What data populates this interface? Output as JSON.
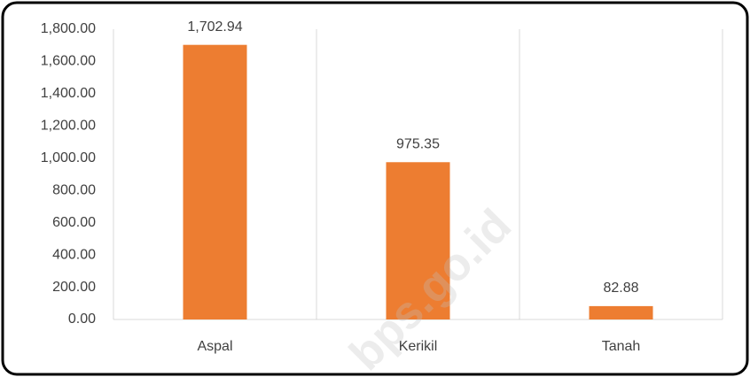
{
  "chart_data": {
    "type": "bar",
    "categories": [
      "Aspal",
      "Kerikil",
      "Tanah"
    ],
    "values": [
      1702.94,
      975.35,
      82.88
    ],
    "value_labels": [
      "1,702.94",
      "975.35",
      "82.88"
    ],
    "color": "#ed7d31",
    "ylim": [
      0,
      1800
    ],
    "yticks": [
      {
        "value": 0,
        "label": "0.00"
      },
      {
        "value": 200,
        "label": "200.00"
      },
      {
        "value": 400,
        "label": "400.00"
      },
      {
        "value": 600,
        "label": "600.00"
      },
      {
        "value": 800,
        "label": "800.00"
      },
      {
        "value": 1000,
        "label": "1,000.00"
      },
      {
        "value": 1200,
        "label": "1,200.00"
      },
      {
        "value": 1400,
        "label": "1,400.00"
      },
      {
        "value": 1600,
        "label": "1,600.00"
      },
      {
        "value": 1800,
        "label": "1,800.00"
      }
    ],
    "watermark": "bps.go.id"
  }
}
